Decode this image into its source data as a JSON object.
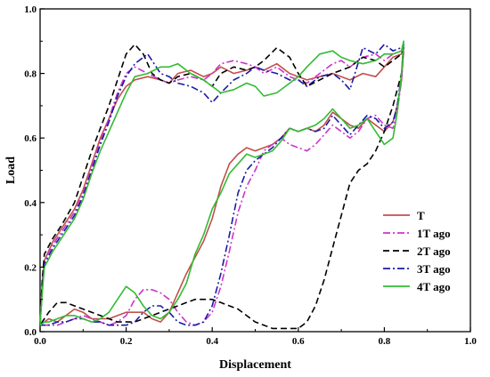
{
  "chart_data": {
    "type": "line",
    "title": "",
    "xlabel": "Displacement",
    "ylabel": "Load",
    "xlim": [
      0.0,
      1.0
    ],
    "ylim": [
      0.0,
      1.0
    ],
    "x_ticks": [
      "0.0",
      "0.2",
      "0.4",
      "0.6",
      "0.8",
      "1.0"
    ],
    "y_ticks": [
      "0.0",
      "0.2",
      "0.4",
      "0.6",
      "0.8",
      "1.0"
    ],
    "grid": false,
    "legend_position": "right",
    "series": [
      {
        "name": "T",
        "color": "#c0504d",
        "dash": "solid",
        "x": [
          0.0,
          0.005,
          0.01,
          0.03,
          0.05,
          0.08,
          0.1,
          0.12,
          0.14,
          0.16,
          0.18,
          0.2,
          0.22,
          0.25,
          0.28,
          0.3,
          0.32,
          0.35,
          0.38,
          0.4,
          0.42,
          0.45,
          0.48,
          0.5,
          0.52,
          0.55,
          0.58,
          0.6,
          0.62,
          0.65,
          0.68,
          0.7,
          0.72,
          0.75,
          0.78,
          0.8,
          0.82,
          0.84,
          0.845,
          0.84,
          0.83,
          0.82,
          0.8,
          0.78,
          0.76,
          0.74,
          0.72,
          0.7,
          0.68,
          0.66,
          0.64,
          0.62,
          0.6,
          0.58,
          0.56,
          0.54,
          0.52,
          0.5,
          0.48,
          0.46,
          0.44,
          0.42,
          0.4,
          0.38,
          0.36,
          0.34,
          0.32,
          0.3,
          0.28,
          0.26,
          0.24,
          0.22,
          0.2,
          0.18,
          0.16,
          0.14,
          0.12,
          0.1,
          0.08,
          0.06,
          0.04,
          0.02,
          0.01,
          0.0
        ],
        "y": [
          0.02,
          0.15,
          0.22,
          0.28,
          0.32,
          0.38,
          0.44,
          0.52,
          0.6,
          0.66,
          0.72,
          0.76,
          0.78,
          0.79,
          0.78,
          0.77,
          0.8,
          0.81,
          0.79,
          0.8,
          0.82,
          0.8,
          0.81,
          0.82,
          0.81,
          0.83,
          0.8,
          0.79,
          0.78,
          0.79,
          0.8,
          0.79,
          0.78,
          0.8,
          0.79,
          0.82,
          0.85,
          0.86,
          0.88,
          0.78,
          0.7,
          0.65,
          0.62,
          0.64,
          0.66,
          0.63,
          0.64,
          0.66,
          0.68,
          0.64,
          0.62,
          0.63,
          0.62,
          0.63,
          0.6,
          0.58,
          0.57,
          0.56,
          0.57,
          0.55,
          0.52,
          0.45,
          0.35,
          0.28,
          0.23,
          0.18,
          0.12,
          0.06,
          0.03,
          0.04,
          0.06,
          0.06,
          0.06,
          0.05,
          0.04,
          0.04,
          0.04,
          0.06,
          0.07,
          0.05,
          0.03,
          0.04,
          0.03,
          0.02
        ]
      },
      {
        "name": "1T ago",
        "color": "#cc33cc",
        "dash": "dashdot",
        "x": [
          0.0,
          0.005,
          0.01,
          0.03,
          0.05,
          0.08,
          0.1,
          0.12,
          0.14,
          0.16,
          0.18,
          0.2,
          0.22,
          0.25,
          0.28,
          0.3,
          0.32,
          0.35,
          0.38,
          0.4,
          0.42,
          0.45,
          0.48,
          0.5,
          0.52,
          0.55,
          0.58,
          0.6,
          0.62,
          0.65,
          0.68,
          0.7,
          0.72,
          0.75,
          0.78,
          0.8,
          0.82,
          0.84,
          0.845,
          0.84,
          0.83,
          0.82,
          0.8,
          0.78,
          0.76,
          0.74,
          0.72,
          0.7,
          0.68,
          0.66,
          0.64,
          0.62,
          0.6,
          0.58,
          0.56,
          0.54,
          0.52,
          0.5,
          0.48,
          0.46,
          0.44,
          0.42,
          0.4,
          0.38,
          0.36,
          0.34,
          0.32,
          0.3,
          0.28,
          0.26,
          0.24,
          0.22,
          0.2,
          0.18,
          0.16,
          0.14,
          0.12,
          0.1,
          0.08,
          0.06,
          0.04,
          0.02,
          0.01,
          0.0
        ],
        "y": [
          0.02,
          0.14,
          0.22,
          0.27,
          0.31,
          0.37,
          0.43,
          0.51,
          0.59,
          0.66,
          0.74,
          0.8,
          0.82,
          0.8,
          0.78,
          0.77,
          0.78,
          0.79,
          0.78,
          0.8,
          0.83,
          0.84,
          0.83,
          0.82,
          0.8,
          0.82,
          0.79,
          0.78,
          0.77,
          0.8,
          0.83,
          0.84,
          0.82,
          0.85,
          0.86,
          0.84,
          0.86,
          0.87,
          0.88,
          0.78,
          0.68,
          0.63,
          0.64,
          0.67,
          0.66,
          0.62,
          0.6,
          0.62,
          0.64,
          0.61,
          0.58,
          0.56,
          0.57,
          0.58,
          0.6,
          0.58,
          0.56,
          0.5,
          0.45,
          0.37,
          0.25,
          0.14,
          0.06,
          0.03,
          0.02,
          0.03,
          0.06,
          0.1,
          0.12,
          0.13,
          0.13,
          0.1,
          0.05,
          0.03,
          0.02,
          0.03,
          0.04,
          0.05,
          0.04,
          0.03,
          0.02,
          0.02,
          0.02,
          0.02
        ]
      },
      {
        "name": "2T ago",
        "color": "#000000",
        "dash": "dashed",
        "x": [
          0.0,
          0.005,
          0.01,
          0.03,
          0.05,
          0.08,
          0.1,
          0.12,
          0.14,
          0.16,
          0.18,
          0.2,
          0.22,
          0.24,
          0.26,
          0.28,
          0.3,
          0.32,
          0.35,
          0.38,
          0.4,
          0.42,
          0.45,
          0.48,
          0.5,
          0.52,
          0.55,
          0.58,
          0.6,
          0.62,
          0.65,
          0.68,
          0.7,
          0.72,
          0.75,
          0.78,
          0.8,
          0.82,
          0.84,
          0.845,
          0.84,
          0.82,
          0.8,
          0.78,
          0.76,
          0.74,
          0.72,
          0.7,
          0.68,
          0.66,
          0.64,
          0.62,
          0.6,
          0.58,
          0.56,
          0.54,
          0.52,
          0.5,
          0.48,
          0.46,
          0.44,
          0.42,
          0.4,
          0.38,
          0.36,
          0.34,
          0.32,
          0.3,
          0.28,
          0.26,
          0.24,
          0.22,
          0.2,
          0.18,
          0.16,
          0.14,
          0.12,
          0.1,
          0.08,
          0.06,
          0.04,
          0.02,
          0.01,
          0.0
        ],
        "y": [
          0.02,
          0.16,
          0.24,
          0.29,
          0.33,
          0.4,
          0.48,
          0.56,
          0.63,
          0.7,
          0.78,
          0.86,
          0.89,
          0.86,
          0.8,
          0.78,
          0.77,
          0.79,
          0.8,
          0.78,
          0.76,
          0.8,
          0.82,
          0.81,
          0.82,
          0.84,
          0.88,
          0.85,
          0.8,
          0.76,
          0.78,
          0.8,
          0.81,
          0.82,
          0.85,
          0.84,
          0.82,
          0.84,
          0.86,
          0.88,
          0.8,
          0.7,
          0.62,
          0.56,
          0.52,
          0.5,
          0.46,
          0.36,
          0.26,
          0.16,
          0.08,
          0.03,
          0.01,
          0.01,
          0.01,
          0.01,
          0.02,
          0.03,
          0.05,
          0.07,
          0.08,
          0.09,
          0.1,
          0.1,
          0.1,
          0.09,
          0.08,
          0.07,
          0.06,
          0.05,
          0.04,
          0.03,
          0.03,
          0.03,
          0.04,
          0.05,
          0.06,
          0.07,
          0.08,
          0.09,
          0.09,
          0.06,
          0.04,
          0.02
        ]
      },
      {
        "name": "3T ago",
        "color": "#1a1aa6",
        "dash": "dashdot",
        "x": [
          0.0,
          0.005,
          0.01,
          0.03,
          0.05,
          0.08,
          0.1,
          0.12,
          0.14,
          0.16,
          0.18,
          0.2,
          0.22,
          0.25,
          0.28,
          0.3,
          0.32,
          0.35,
          0.38,
          0.4,
          0.42,
          0.45,
          0.48,
          0.5,
          0.52,
          0.55,
          0.58,
          0.6,
          0.62,
          0.65,
          0.68,
          0.7,
          0.72,
          0.75,
          0.78,
          0.8,
          0.82,
          0.84,
          0.845,
          0.84,
          0.83,
          0.82,
          0.8,
          0.78,
          0.76,
          0.74,
          0.72,
          0.7,
          0.68,
          0.66,
          0.64,
          0.62,
          0.6,
          0.58,
          0.56,
          0.54,
          0.52,
          0.5,
          0.48,
          0.46,
          0.44,
          0.42,
          0.4,
          0.38,
          0.36,
          0.34,
          0.32,
          0.3,
          0.28,
          0.26,
          0.24,
          0.22,
          0.2,
          0.18,
          0.16,
          0.14,
          0.12,
          0.1,
          0.08,
          0.06,
          0.04,
          0.02,
          0.01,
          0.0
        ],
        "y": [
          0.02,
          0.13,
          0.21,
          0.26,
          0.3,
          0.36,
          0.42,
          0.5,
          0.58,
          0.65,
          0.73,
          0.79,
          0.83,
          0.86,
          0.8,
          0.79,
          0.77,
          0.76,
          0.74,
          0.71,
          0.74,
          0.78,
          0.8,
          0.82,
          0.81,
          0.8,
          0.78,
          0.78,
          0.76,
          0.79,
          0.8,
          0.78,
          0.75,
          0.88,
          0.86,
          0.89,
          0.87,
          0.88,
          0.89,
          0.8,
          0.7,
          0.65,
          0.63,
          0.66,
          0.67,
          0.64,
          0.61,
          0.64,
          0.67,
          0.63,
          0.62,
          0.63,
          0.62,
          0.63,
          0.6,
          0.57,
          0.55,
          0.53,
          0.5,
          0.43,
          0.3,
          0.18,
          0.08,
          0.03,
          0.02,
          0.02,
          0.03,
          0.06,
          0.08,
          0.08,
          0.06,
          0.03,
          0.02,
          0.02,
          0.02,
          0.03,
          0.03,
          0.04,
          0.04,
          0.03,
          0.03,
          0.02,
          0.02,
          0.02
        ]
      },
      {
        "name": "4T ago",
        "color": "#33bb33",
        "dash": "solid",
        "x": [
          0.0,
          0.005,
          0.01,
          0.03,
          0.05,
          0.08,
          0.1,
          0.12,
          0.14,
          0.16,
          0.18,
          0.2,
          0.22,
          0.25,
          0.28,
          0.3,
          0.32,
          0.35,
          0.38,
          0.4,
          0.42,
          0.45,
          0.48,
          0.5,
          0.52,
          0.55,
          0.58,
          0.6,
          0.62,
          0.65,
          0.68,
          0.7,
          0.72,
          0.75,
          0.78,
          0.8,
          0.82,
          0.84,
          0.845,
          0.84,
          0.83,
          0.82,
          0.8,
          0.78,
          0.76,
          0.74,
          0.72,
          0.7,
          0.68,
          0.66,
          0.64,
          0.62,
          0.6,
          0.58,
          0.56,
          0.54,
          0.52,
          0.5,
          0.48,
          0.46,
          0.44,
          0.42,
          0.4,
          0.38,
          0.36,
          0.34,
          0.32,
          0.3,
          0.28,
          0.26,
          0.24,
          0.22,
          0.2,
          0.18,
          0.16,
          0.14,
          0.12,
          0.1,
          0.08,
          0.06,
          0.04,
          0.02,
          0.01,
          0.0
        ],
        "y": [
          0.02,
          0.12,
          0.2,
          0.25,
          0.29,
          0.35,
          0.41,
          0.49,
          0.56,
          0.62,
          0.68,
          0.74,
          0.79,
          0.8,
          0.82,
          0.82,
          0.83,
          0.8,
          0.78,
          0.76,
          0.74,
          0.75,
          0.77,
          0.76,
          0.73,
          0.74,
          0.77,
          0.79,
          0.82,
          0.86,
          0.87,
          0.85,
          0.84,
          0.83,
          0.84,
          0.86,
          0.86,
          0.87,
          0.9,
          0.8,
          0.68,
          0.6,
          0.58,
          0.62,
          0.66,
          0.64,
          0.63,
          0.66,
          0.69,
          0.66,
          0.64,
          0.63,
          0.62,
          0.63,
          0.59,
          0.56,
          0.55,
          0.54,
          0.55,
          0.52,
          0.49,
          0.43,
          0.38,
          0.3,
          0.24,
          0.15,
          0.1,
          0.06,
          0.04,
          0.05,
          0.08,
          0.12,
          0.14,
          0.1,
          0.06,
          0.04,
          0.03,
          0.04,
          0.05,
          0.05,
          0.04,
          0.03,
          0.03,
          0.02
        ]
      }
    ]
  }
}
